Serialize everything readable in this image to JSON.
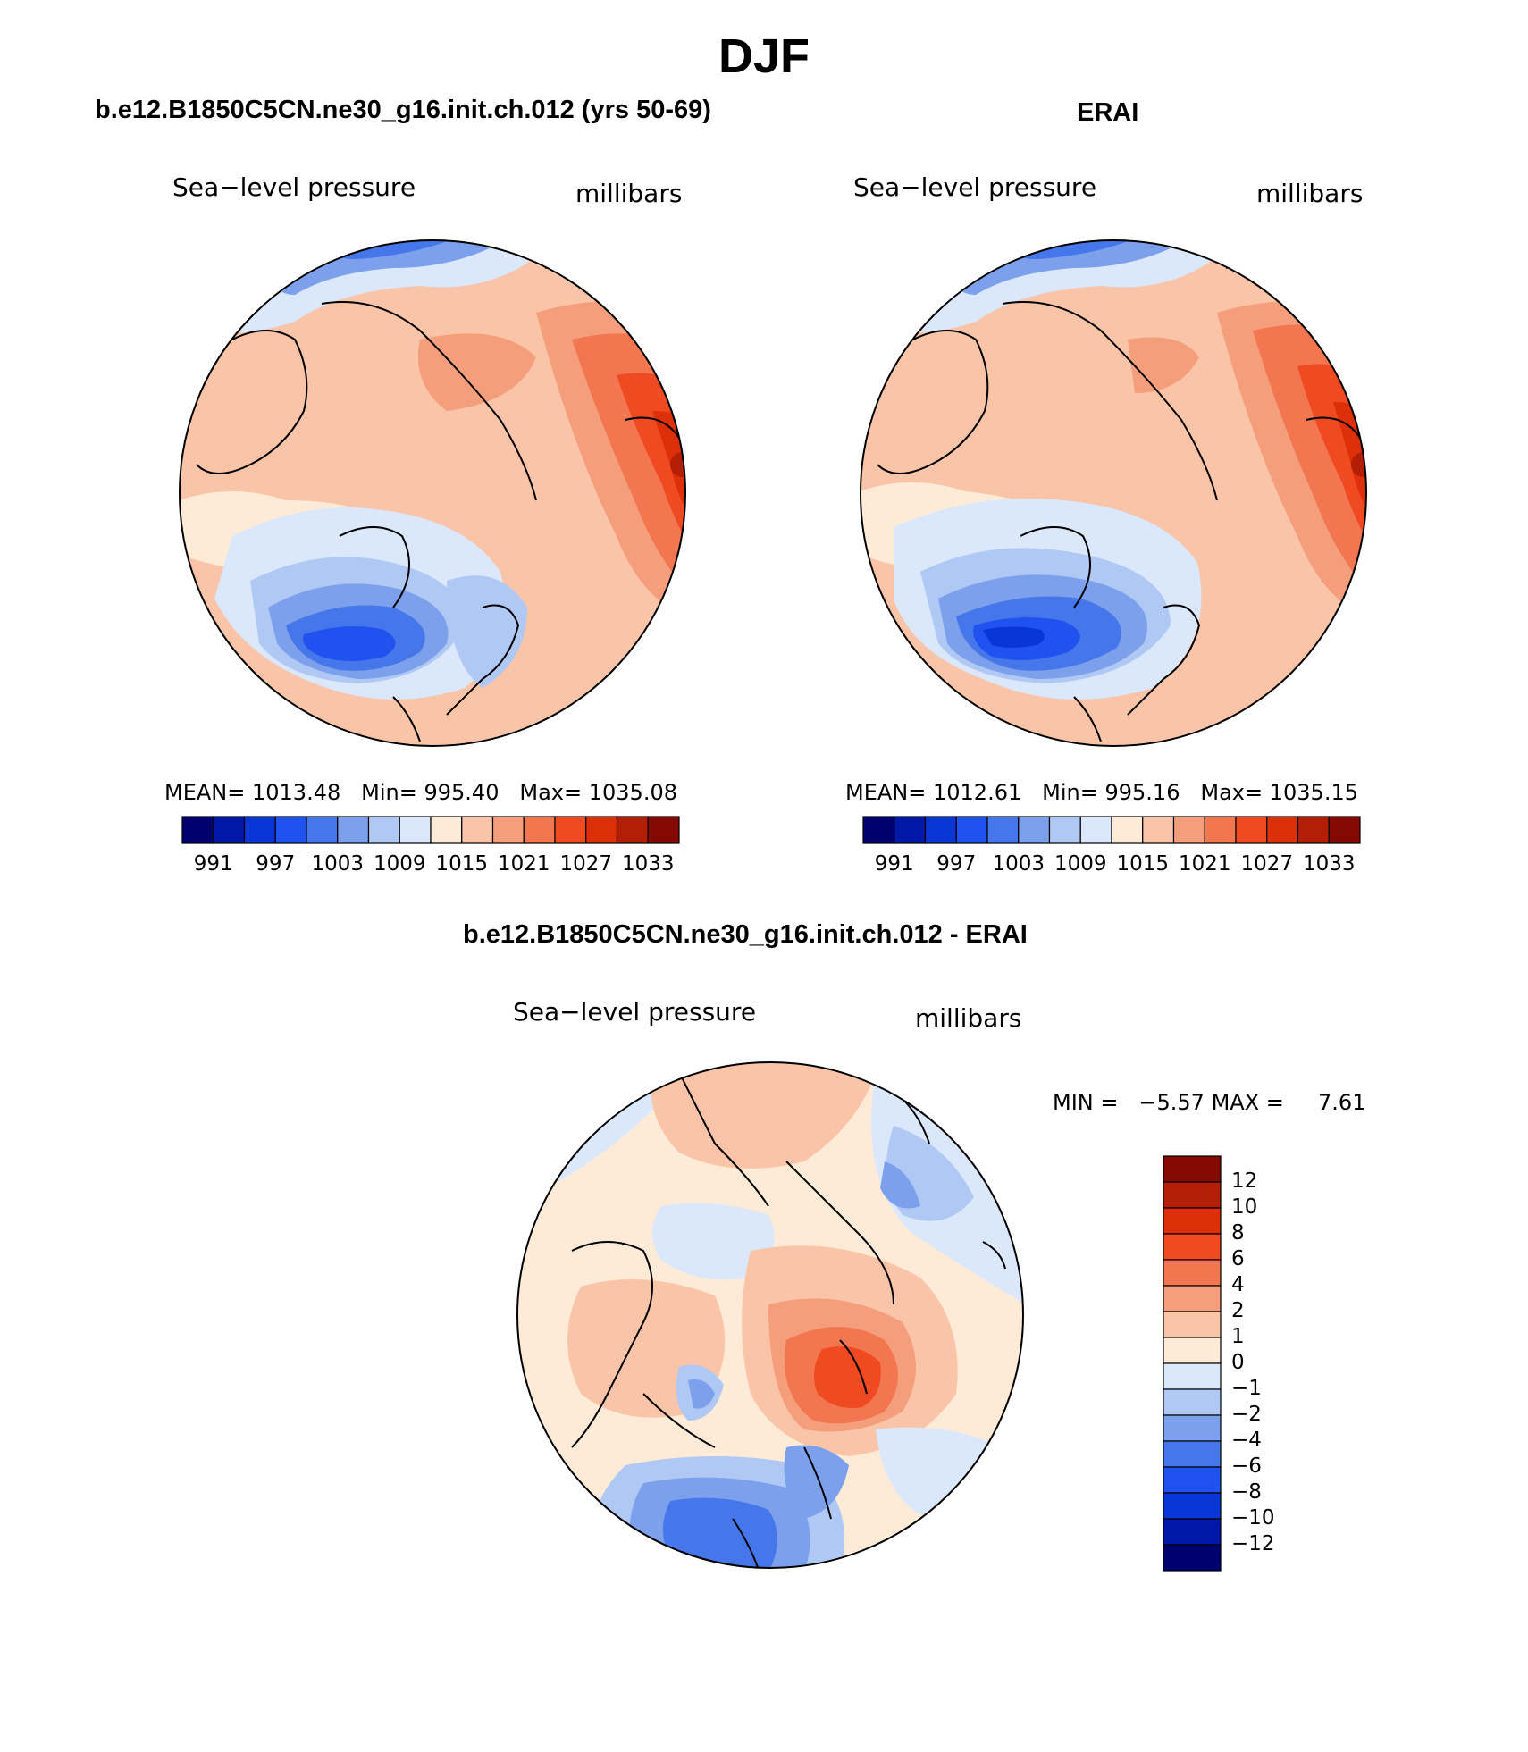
{
  "page": {
    "title": "DJF"
  },
  "panels": {
    "model": {
      "title": "b.e12.B1850C5CN.ne30_g16.init.ch.012 (yrs 50-69)",
      "left_label": "Sea−level pressure",
      "right_label": "millibars",
      "stats": {
        "mean_label": "MEAN=",
        "mean_value": "1013.48",
        "min_label": "Min=",
        "min_value": "995.40",
        "max_label": "Max=",
        "max_value": "1035.08"
      }
    },
    "obs": {
      "title": "ERAI",
      "left_label": "Sea−level pressure",
      "right_label": "millibars",
      "stats": {
        "mean_label": "MEAN=",
        "mean_value": "1012.61",
        "min_label": "Min=",
        "min_value": "995.16",
        "max_label": "Max=",
        "max_value": "1035.15"
      }
    },
    "diff": {
      "title": "b.e12.B1850C5CN.ne30_g16.init.ch.012 - ERAI",
      "left_label": "Sea−level pressure",
      "right_label": "millibars",
      "stats": {
        "min_label": "MIN =",
        "min_value": "−5.57",
        "max_label": "MAX =",
        "max_value": "7.61"
      }
    }
  },
  "colorbars": {
    "slp": {
      "colors": [
        "#00006e",
        "#0018a8",
        "#0a36d6",
        "#1f52ee",
        "#4677ea",
        "#7ca0ec",
        "#b0c8f4",
        "#dbe8fb",
        "#fdebd8",
        "#f9c4a8",
        "#f59e7c",
        "#f27650",
        "#ef4a22",
        "#dd2f0a",
        "#b21f06",
        "#850903"
      ],
      "ticks": [
        "991",
        "997",
        "1003",
        "1009",
        "1015",
        "1021",
        "1027",
        "1033"
      ]
    },
    "diff": {
      "colors": [
        "#00006e",
        "#0018a8",
        "#0a36d6",
        "#1f52ee",
        "#4677ea",
        "#7ca0ec",
        "#b0c8f4",
        "#dbe8fb",
        "#fdebd8",
        "#f9c4a8",
        "#f59e7c",
        "#f27650",
        "#ef4a22",
        "#dd2f0a",
        "#b21f06",
        "#850903"
      ],
      "ticks": [
        "12",
        "10",
        "8",
        "6",
        "4",
        "2",
        "1",
        "0",
        "−1",
        "−2",
        "−4",
        "−6",
        "−8",
        "−10",
        "−12"
      ]
    }
  },
  "maps": {
    "projection": "north-polar-stereographic",
    "variable": "sea-level pressure"
  }
}
